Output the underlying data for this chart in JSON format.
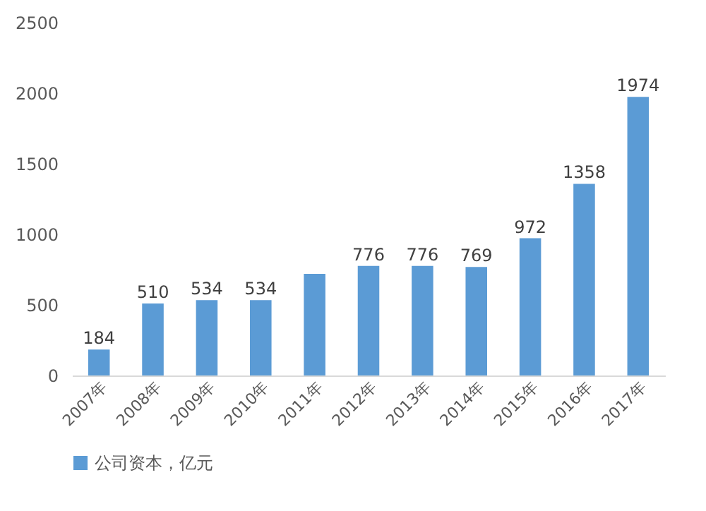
{
  "chart_data": {
    "type": "bar",
    "categories": [
      "2007年",
      "2008年",
      "2009年",
      "2010年",
      "2011年",
      "2012年",
      "2013年",
      "2014年",
      "2015年",
      "2016年",
      "2017年"
    ],
    "series": [
      {
        "name": "公司资本，亿元",
        "color": "#5b9bd5",
        "values": [
          184,
          510,
          534,
          534,
          720,
          776,
          776,
          769,
          972,
          1358,
          1974
        ],
        "value_labels": [
          "184",
          "510",
          "534",
          "534",
          null,
          "776",
          "776",
          "769",
          "972",
          "1358",
          "1974"
        ]
      }
    ],
    "ylim": [
      0,
      2500
    ],
    "yticks": [
      0,
      500,
      1000,
      1500,
      2000,
      2500
    ],
    "grid": false,
    "legend": "bottom"
  }
}
